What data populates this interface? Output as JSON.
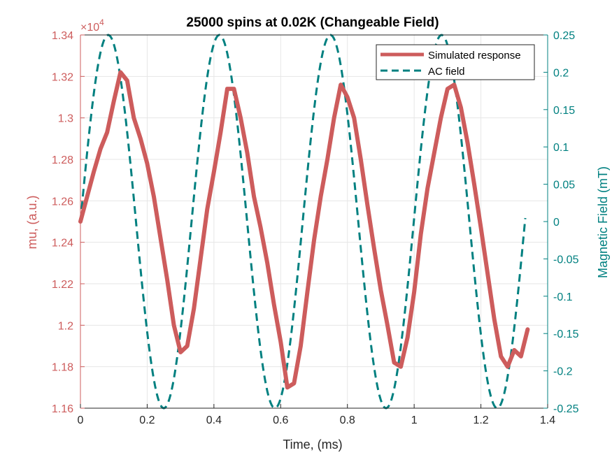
{
  "chart_data": {
    "type": "line",
    "title": "25000 spins at 0.02K (Changeable Field)",
    "xlabel": "Time, (ms)",
    "ylabel_left": "mu, (a.u.)",
    "ylabel_right": "Magnetic Field (mT)",
    "left_exponent_label": "×10",
    "left_exponent_power": "4",
    "xlim": [
      0,
      1.4
    ],
    "ylim_left": [
      1.16,
      1.34
    ],
    "ylim_right": [
      -0.25,
      0.25
    ],
    "xticks": [
      "0",
      "0.2",
      "0.4",
      "0.6",
      "0.8",
      "1",
      "1.2",
      "1.4"
    ],
    "yticks_left": [
      "1.16",
      "1.18",
      "1.2",
      "1.22",
      "1.24",
      "1.26",
      "1.28",
      "1.3",
      "1.32",
      "1.34"
    ],
    "yticks_right": [
      "-0.25",
      "-0.2",
      "-0.15",
      "-0.1",
      "-0.05",
      "0",
      "0.05",
      "0.1",
      "0.15",
      "0.2",
      "0.25"
    ],
    "grid": true,
    "legend_position": "top-right",
    "colors": {
      "simulated": "#cd5c5c",
      "field": "#008080",
      "grid": "#e6e6e6",
      "axis": "#262626"
    },
    "series": [
      {
        "name": "Simulated response",
        "axis": "left",
        "style": "solid",
        "x": [
          0,
          0.02,
          0.04,
          0.06,
          0.08,
          0.1,
          0.12,
          0.14,
          0.16,
          0.18,
          0.2,
          0.22,
          0.24,
          0.26,
          0.28,
          0.3,
          0.32,
          0.34,
          0.36,
          0.38,
          0.4,
          0.42,
          0.44,
          0.46,
          0.48,
          0.5,
          0.52,
          0.54,
          0.56,
          0.58,
          0.6,
          0.62,
          0.64,
          0.66,
          0.68,
          0.7,
          0.72,
          0.74,
          0.76,
          0.78,
          0.8,
          0.82,
          0.84,
          0.86,
          0.88,
          0.9,
          0.92,
          0.94,
          0.96,
          0.98,
          1.0,
          1.02,
          1.04,
          1.06,
          1.08,
          1.1,
          1.12,
          1.14,
          1.16,
          1.18,
          1.2,
          1.22,
          1.24,
          1.26,
          1.28,
          1.3,
          1.32,
          1.34
        ],
        "values": [
          1.25,
          1.262,
          1.274,
          1.285,
          1.293,
          1.308,
          1.322,
          1.318,
          1.3,
          1.29,
          1.278,
          1.262,
          1.242,
          1.222,
          1.2,
          1.187,
          1.19,
          1.208,
          1.232,
          1.256,
          1.274,
          1.293,
          1.314,
          1.314,
          1.3,
          1.283,
          1.262,
          1.247,
          1.23,
          1.21,
          1.192,
          1.17,
          1.172,
          1.19,
          1.216,
          1.241,
          1.262,
          1.28,
          1.3,
          1.316,
          1.31,
          1.3,
          1.28,
          1.258,
          1.237,
          1.217,
          1.2,
          1.182,
          1.18,
          1.194,
          1.216,
          1.244,
          1.266,
          1.283,
          1.3,
          1.314,
          1.316,
          1.305,
          1.288,
          1.268,
          1.247,
          1.225,
          1.203,
          1.185,
          1.18,
          1.188,
          1.185,
          1.198
        ]
      },
      {
        "name": "AC field",
        "axis": "right",
        "style": "dashed",
        "amplitude": 0.25,
        "period_ms": 0.333,
        "x_end": 1.333
      }
    ]
  }
}
